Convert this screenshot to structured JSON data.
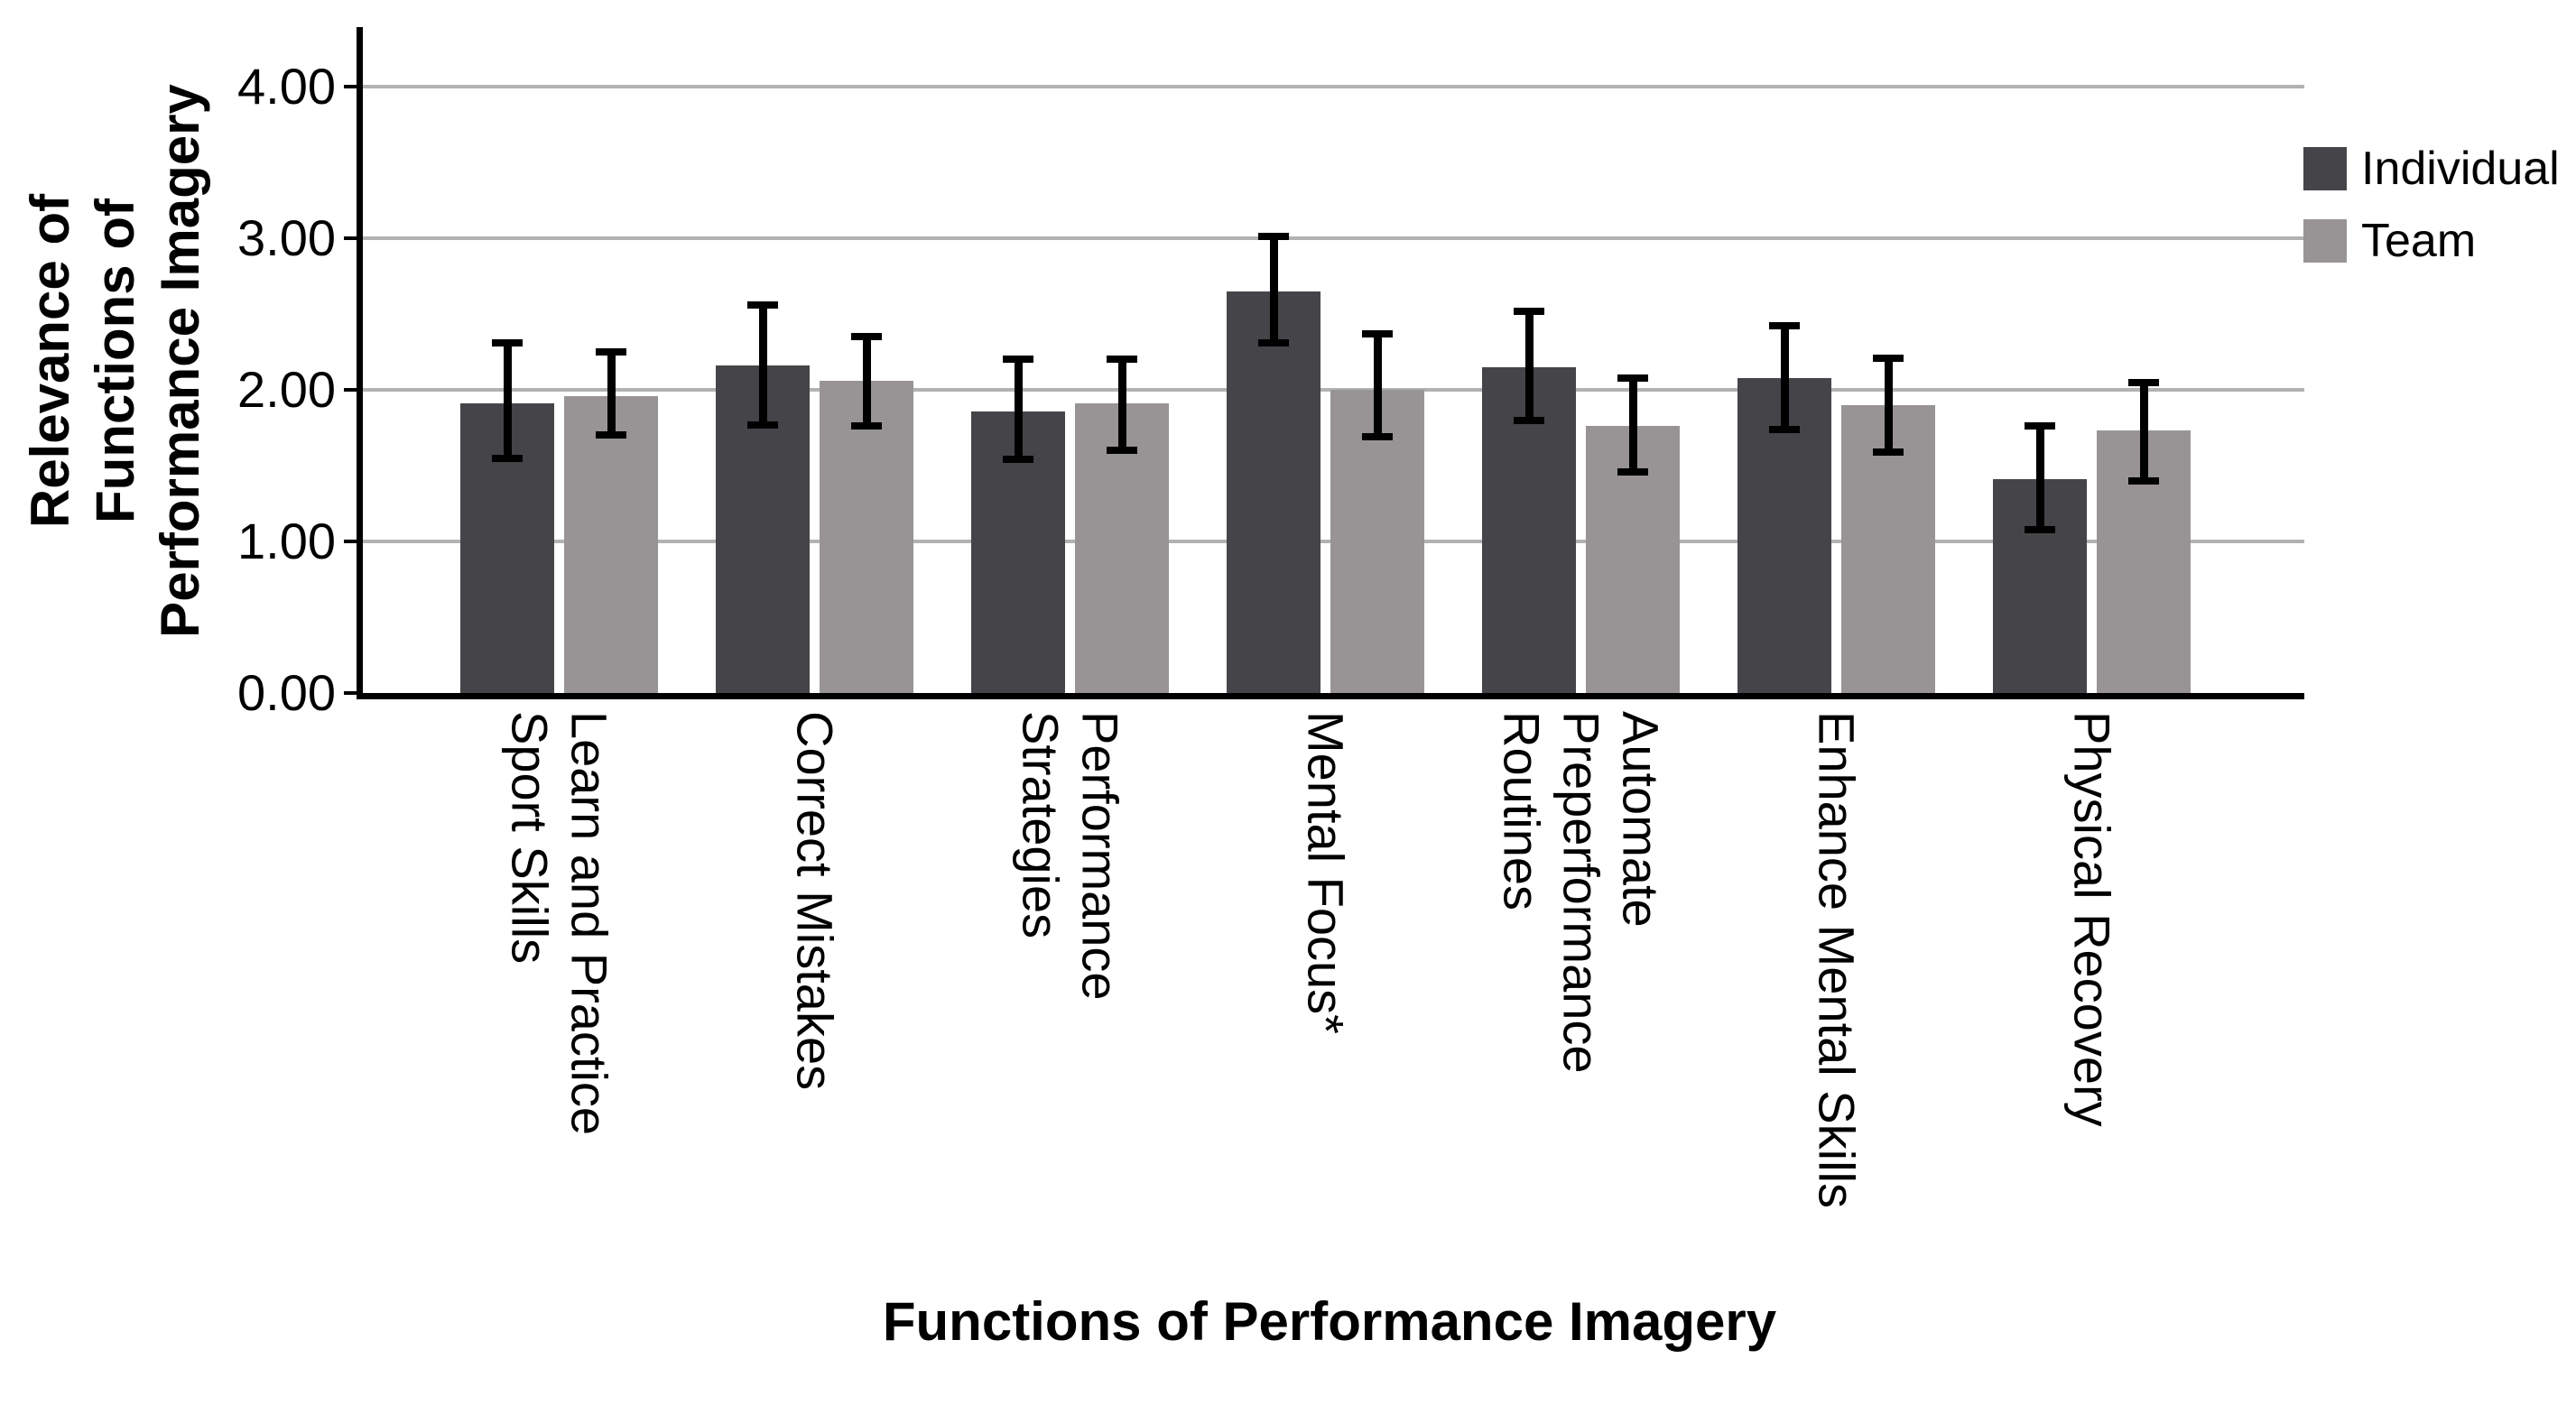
{
  "chart_data": {
    "type": "bar",
    "title": "",
    "xlabel": "Functions of Performance Imagery",
    "ylabel_lines": [
      "Relevance of",
      "Functions of",
      "Performance Imagery"
    ],
    "ylim": [
      0,
      4.39
    ],
    "yticks": [
      {
        "value": 0,
        "label": "0.00"
      },
      {
        "value": 1,
        "label": "1.00"
      },
      {
        "value": 2,
        "label": "2.00"
      },
      {
        "value": 3,
        "label": "3.00"
      },
      {
        "value": 4,
        "label": "4.00"
      }
    ],
    "grid": "horizontal",
    "grid_color": "#b2b2b2",
    "axis_color": "#000000",
    "legend_position": "right",
    "error_bars": true,
    "categories": [
      {
        "lines": [
          "Learn and Practice",
          "Sport Skills"
        ]
      },
      {
        "lines": [
          "Correct Mistakes"
        ]
      },
      {
        "lines": [
          "Performance",
          "Strategies"
        ]
      },
      {
        "lines": [
          "Mental Focus*"
        ]
      },
      {
        "lines": [
          "Automate",
          "Preperformance",
          "Routines"
        ]
      },
      {
        "lines": [
          "Enhance Mental Skills"
        ]
      },
      {
        "lines": [
          "Physical Recovery"
        ]
      }
    ],
    "series": [
      {
        "name": "Individual",
        "color": "#454549",
        "values": [
          1.91,
          2.16,
          1.86,
          2.65,
          2.15,
          2.08,
          1.41
        ],
        "ci_low": [
          1.55,
          1.77,
          1.54,
          2.31,
          1.8,
          1.74,
          1.08
        ],
        "ci_high": [
          2.31,
          2.56,
          2.2,
          3.01,
          2.52,
          2.42,
          1.76
        ]
      },
      {
        "name": "Team",
        "color": "#989495",
        "values": [
          1.96,
          2.06,
          1.91,
          2.0,
          1.76,
          1.9,
          1.73
        ],
        "ci_low": [
          1.7,
          1.76,
          1.6,
          1.69,
          1.46,
          1.59,
          1.4
        ],
        "ci_high": [
          2.25,
          2.35,
          2.2,
          2.37,
          2.08,
          2.21,
          2.05
        ]
      }
    ]
  }
}
